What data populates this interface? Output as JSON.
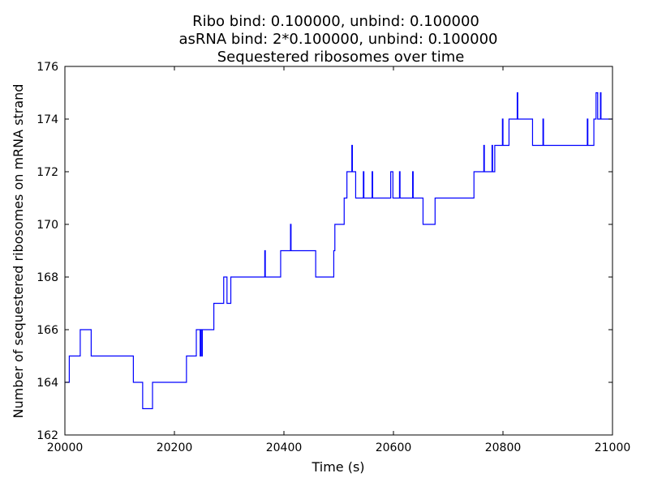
{
  "chart_data": {
    "type": "line",
    "title_lines": [
      "Ribo bind: 0.100000, unbind: 0.100000",
      "asRNA bind: 2*0.100000, unbind: 0.100000",
      "Sequestered ribosomes over time"
    ],
    "xlabel": "Time (s)",
    "ylabel": "Number of sequestered ribosomes on mRNA strand",
    "xlim": [
      20000,
      21000
    ],
    "ylim": [
      162,
      176
    ],
    "xticks": [
      "20000",
      "20200",
      "20400",
      "20600",
      "20800",
      "21000"
    ],
    "yticks": [
      "162",
      "164",
      "166",
      "168",
      "170",
      "172",
      "174",
      "176"
    ],
    "grid": false,
    "line_color": "#0000ff",
    "series": [
      {
        "step": true,
        "points": [
          [
            20000,
            164
          ],
          [
            20008,
            165
          ],
          [
            20028,
            166
          ],
          [
            20048,
            165
          ],
          [
            20125,
            164
          ],
          [
            20142,
            163
          ],
          [
            20160,
            164
          ],
          [
            20222,
            165
          ],
          [
            20240,
            166
          ],
          [
            20247,
            165
          ],
          [
            20248,
            166
          ],
          [
            20250,
            165
          ],
          [
            20251,
            166
          ],
          [
            20272,
            167
          ],
          [
            20290,
            168
          ],
          [
            20296,
            167
          ],
          [
            20303,
            168
          ],
          [
            20365,
            169
          ],
          [
            20366,
            168
          ],
          [
            20394,
            169
          ],
          [
            20412,
            170
          ],
          [
            20413,
            169
          ],
          [
            20458,
            168
          ],
          [
            20491,
            169
          ],
          [
            20493,
            170
          ],
          [
            20497,
            170
          ],
          [
            20510,
            171
          ],
          [
            20515,
            172
          ],
          [
            20524,
            173
          ],
          [
            20525,
            172
          ],
          [
            20531,
            171
          ],
          [
            20545,
            172
          ],
          [
            20546,
            171
          ],
          [
            20561,
            172
          ],
          [
            20562,
            171
          ],
          [
            20595,
            172
          ],
          [
            20599,
            171
          ],
          [
            20611,
            172
          ],
          [
            20612,
            171
          ],
          [
            20635,
            172
          ],
          [
            20636,
            171
          ],
          [
            20654,
            170
          ],
          [
            20676,
            171
          ],
          [
            20747,
            172
          ],
          [
            20765,
            173
          ],
          [
            20766,
            172
          ],
          [
            20780,
            173
          ],
          [
            20781,
            172
          ],
          [
            20785,
            173
          ],
          [
            20799,
            174
          ],
          [
            20800,
            173
          ],
          [
            20811,
            174
          ],
          [
            20826,
            175
          ],
          [
            20827,
            174
          ],
          [
            20854,
            173
          ],
          [
            20873,
            174
          ],
          [
            20874,
            173
          ],
          [
            20954,
            174
          ],
          [
            20955,
            173
          ],
          [
            20966,
            174
          ],
          [
            20970,
            175
          ],
          [
            20973,
            174
          ],
          [
            20978,
            175
          ],
          [
            20979,
            174
          ],
          [
            21000,
            174
          ]
        ]
      }
    ]
  }
}
